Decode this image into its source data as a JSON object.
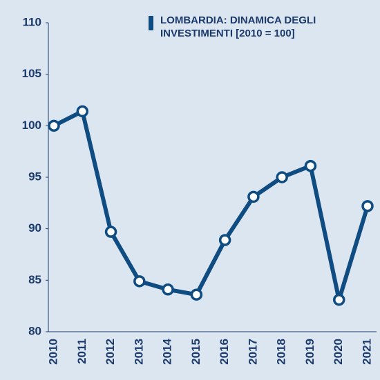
{
  "chart_data": {
    "type": "line",
    "categories": [
      "2010",
      "2011",
      "2012",
      "2013",
      "2014",
      "2015",
      "2016",
      "2017",
      "2018",
      "2019",
      "2020",
      "2021"
    ],
    "series": [
      {
        "name": "LOMBARDIA: DINAMICA DEGLI INVESTIMENTI [2010 = 100]",
        "color": "#0f4c81",
        "values": [
          100,
          101.4,
          89.7,
          84.9,
          84.1,
          83.6,
          88.9,
          93.1,
          95.0,
          96.1,
          83.1,
          92.2
        ]
      }
    ],
    "ylim": [
      80,
      110
    ],
    "yticks": [
      80,
      85,
      90,
      95,
      100,
      105,
      110
    ],
    "grid": false,
    "legend": "top-right"
  }
}
